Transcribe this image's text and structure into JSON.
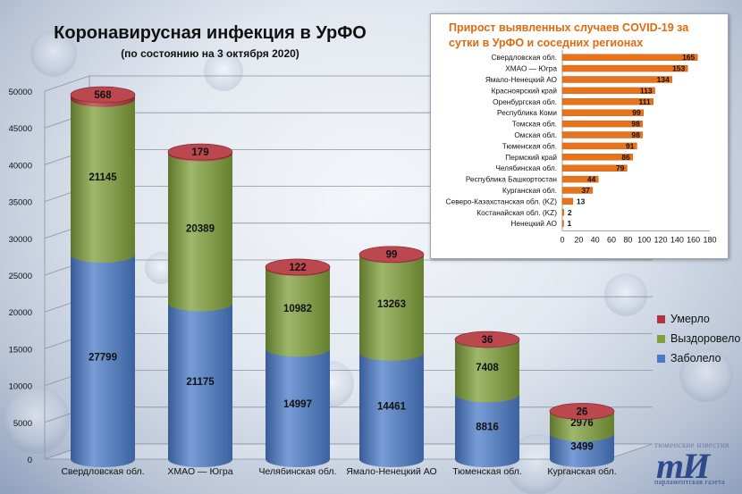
{
  "title": "Коронавирусная инфекция в УрФО",
  "subtitle": "(по состоянию на 3 октября 2020)",
  "logo": {
    "top_text": "тюменские известия",
    "mark": "тИ",
    "bottom_text": "парламентская газета"
  },
  "colors": {
    "infected": "#4a7bc8",
    "recovered": "#7f9f3a",
    "died": "#b3343a",
    "inset_title": "#e06a10",
    "inset_bar": "#e8731c"
  },
  "chart_data": [
    {
      "type": "bar",
      "stacked": true,
      "style": "3d-cylinder",
      "categories": [
        "Свердловская обл.",
        "ХМАО — Югра",
        "Челябинская обл.",
        "Ямало-Ненецкий АО",
        "Тюменская обл.",
        "Курганская обл."
      ],
      "series": [
        {
          "name": "Заболело",
          "color": "#4a7bc8",
          "values": [
            27799,
            21175,
            14997,
            14461,
            8816,
            3499
          ]
        },
        {
          "name": "Выздоровело",
          "color": "#7f9f3a",
          "values": [
            21145,
            20389,
            10982,
            13263,
            7408,
            2976
          ]
        },
        {
          "name": "Умерло",
          "color": "#b3343a",
          "values": [
            568,
            179,
            122,
            99,
            36,
            26
          ]
        }
      ],
      "ylim": [
        0,
        50000
      ],
      "yticks": [
        0,
        5000,
        10000,
        15000,
        20000,
        25000,
        30000,
        35000,
        40000,
        45000,
        50000
      ],
      "grid": true,
      "legend": "right",
      "legend_order": [
        "Умерло",
        "Выздоровело",
        "Заболело"
      ]
    },
    {
      "type": "bar",
      "orientation": "horizontal",
      "title": "Прирост выявленных случаев COVID-19 за сутки в УрФО и соседних регионах",
      "categories": [
        "Свердловская обл.",
        "ХМАО — Югра",
        "Ямало-Ненецкий АО",
        "Красноярский край",
        "Оренбургская обл.",
        "Республика Коми",
        "Томская обл.",
        "Омская обл.",
        "Тюменская обл.",
        "Пермский край",
        "Челябинская обл.",
        "Республика Башкортостан",
        "Курганская обл.",
        "Северо-Казахстанская обл. (KZ)",
        "Костанайская обл. (KZ)",
        "Ненецкий АО"
      ],
      "values": [
        165,
        153,
        134,
        113,
        111,
        99,
        98,
        98,
        91,
        86,
        79,
        44,
        37,
        13,
        2,
        1
      ],
      "xlim": [
        0,
        180
      ],
      "xticks": [
        0,
        20,
        40,
        60,
        80,
        100,
        120,
        140,
        160,
        180
      ],
      "color": "#e8731c"
    }
  ]
}
